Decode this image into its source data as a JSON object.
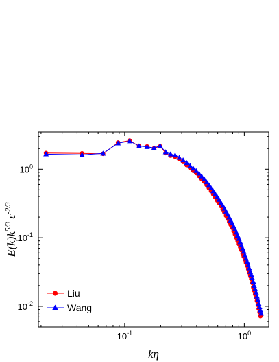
{
  "chart_data": {
    "type": "line",
    "xscale": "log",
    "yscale": "log",
    "xlim": [
      0.019,
      1.6
    ],
    "ylim": [
      0.005,
      3.5
    ],
    "xlabel": "kη",
    "ylabel": "E(k)k^5/3 ε^-2/3",
    "grid": false,
    "legend_position": "bottom-left",
    "x_ticks": [
      {
        "value": 0.1,
        "base": "10",
        "exp": "-1"
      },
      {
        "value": 1,
        "base": "10",
        "exp": "0"
      }
    ],
    "y_ticks": [
      {
        "value": 0.01,
        "base": "10",
        "exp": "-2"
      },
      {
        "value": 0.1,
        "base": "10",
        "exp": "-1"
      },
      {
        "value": 1,
        "base": "10",
        "exp": "0"
      }
    ],
    "series": [
      {
        "name": "Liu",
        "color": "#ff0000",
        "marker": "circle",
        "points": [
          [
            0.022,
            1.72
          ],
          [
            0.044,
            1.7
          ],
          [
            0.066,
            1.68
          ],
          [
            0.088,
            2.45
          ],
          [
            0.11,
            2.62
          ],
          [
            0.132,
            2.18
          ],
          [
            0.154,
            2.15
          ],
          [
            0.176,
            2.02
          ],
          [
            0.198,
            2.16
          ],
          [
            0.22,
            1.72
          ],
          [
            0.242,
            1.58
          ],
          [
            0.264,
            1.52
          ],
          [
            0.286,
            1.4
          ],
          [
            0.308,
            1.28
          ],
          [
            0.33,
            1.15
          ],
          [
            0.352,
            1.05
          ],
          [
            0.374,
            0.95
          ],
          [
            0.396,
            0.88
          ],
          [
            0.418,
            0.8
          ],
          [
            0.44,
            0.72
          ],
          [
            0.462,
            0.66
          ],
          [
            0.484,
            0.59
          ],
          [
            0.506,
            0.53
          ],
          [
            0.528,
            0.48
          ],
          [
            0.55,
            0.43
          ],
          [
            0.572,
            0.39
          ],
          [
            0.594,
            0.35
          ],
          [
            0.616,
            0.32
          ],
          [
            0.638,
            0.29
          ],
          [
            0.66,
            0.26
          ],
          [
            0.682,
            0.235
          ],
          [
            0.704,
            0.21
          ],
          [
            0.726,
            0.19
          ],
          [
            0.748,
            0.17
          ],
          [
            0.77,
            0.155
          ],
          [
            0.792,
            0.14
          ],
          [
            0.814,
            0.125
          ],
          [
            0.836,
            0.112
          ],
          [
            0.858,
            0.1
          ],
          [
            0.88,
            0.09
          ],
          [
            0.902,
            0.081
          ],
          [
            0.924,
            0.073
          ],
          [
            0.946,
            0.066
          ],
          [
            0.968,
            0.059
          ],
          [
            0.99,
            0.053
          ],
          [
            1.012,
            0.048
          ],
          [
            1.034,
            0.043
          ],
          [
            1.056,
            0.039
          ],
          [
            1.078,
            0.035
          ],
          [
            1.1,
            0.031
          ],
          [
            1.122,
            0.028
          ],
          [
            1.144,
            0.025
          ],
          [
            1.166,
            0.022
          ],
          [
            1.188,
            0.019
          ],
          [
            1.21,
            0.017
          ],
          [
            1.232,
            0.015
          ],
          [
            1.254,
            0.0135
          ],
          [
            1.276,
            0.012
          ],
          [
            1.298,
            0.0105
          ],
          [
            1.32,
            0.0092
          ],
          [
            1.342,
            0.0082
          ],
          [
            1.364,
            0.0072
          ]
        ]
      },
      {
        "name": "Wang",
        "color": "#0000ff",
        "marker": "triangle",
        "points": [
          [
            0.022,
            1.66
          ],
          [
            0.044,
            1.62
          ],
          [
            0.066,
            1.7
          ],
          [
            0.088,
            2.4
          ],
          [
            0.11,
            2.58
          ],
          [
            0.132,
            2.18
          ],
          [
            0.154,
            2.12
          ],
          [
            0.176,
            2.05
          ],
          [
            0.198,
            2.2
          ],
          [
            0.22,
            1.78
          ],
          [
            0.242,
            1.66
          ],
          [
            0.264,
            1.6
          ],
          [
            0.286,
            1.48
          ],
          [
            0.308,
            1.36
          ],
          [
            0.33,
            1.24
          ],
          [
            0.352,
            1.13
          ],
          [
            0.374,
            1.03
          ],
          [
            0.396,
            0.95
          ],
          [
            0.418,
            0.87
          ],
          [
            0.44,
            0.79
          ],
          [
            0.462,
            0.72
          ],
          [
            0.484,
            0.65
          ],
          [
            0.506,
            0.59
          ],
          [
            0.528,
            0.53
          ],
          [
            0.55,
            0.48
          ],
          [
            0.572,
            0.435
          ],
          [
            0.594,
            0.395
          ],
          [
            0.616,
            0.36
          ],
          [
            0.638,
            0.325
          ],
          [
            0.66,
            0.295
          ],
          [
            0.682,
            0.268
          ],
          [
            0.704,
            0.243
          ],
          [
            0.726,
            0.22
          ],
          [
            0.748,
            0.199
          ],
          [
            0.77,
            0.18
          ],
          [
            0.792,
            0.163
          ],
          [
            0.814,
            0.147
          ],
          [
            0.836,
            0.133
          ],
          [
            0.858,
            0.12
          ],
          [
            0.88,
            0.108
          ],
          [
            0.902,
            0.097
          ],
          [
            0.924,
            0.087
          ],
          [
            0.946,
            0.078
          ],
          [
            0.968,
            0.07
          ],
          [
            0.99,
            0.063
          ],
          [
            1.012,
            0.056
          ],
          [
            1.034,
            0.05
          ],
          [
            1.056,
            0.045
          ],
          [
            1.078,
            0.04
          ],
          [
            1.1,
            0.036
          ],
          [
            1.122,
            0.032
          ],
          [
            1.144,
            0.029
          ],
          [
            1.166,
            0.026
          ],
          [
            1.188,
            0.023
          ],
          [
            1.21,
            0.02
          ],
          [
            1.232,
            0.018
          ],
          [
            1.254,
            0.016
          ],
          [
            1.276,
            0.014
          ],
          [
            1.298,
            0.0125
          ],
          [
            1.32,
            0.011
          ],
          [
            1.342,
            0.0098
          ],
          [
            1.364,
            0.0088
          ],
          [
            1.386,
            0.0079
          ]
        ]
      }
    ]
  }
}
